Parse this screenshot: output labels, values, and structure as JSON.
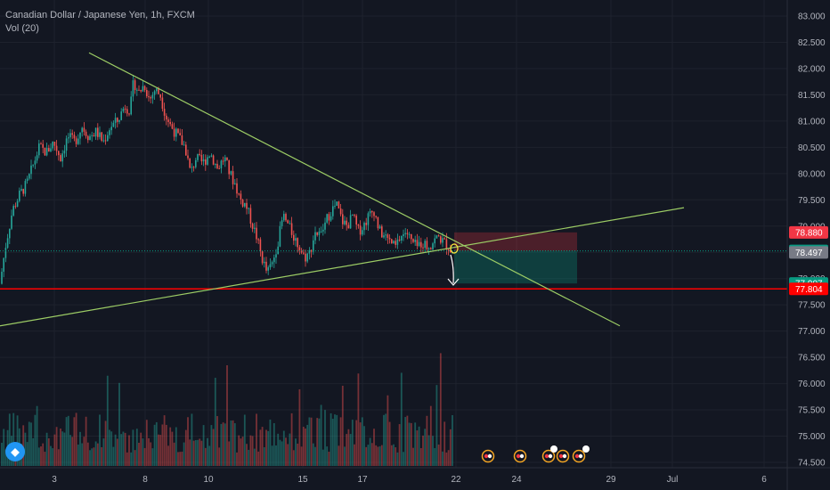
{
  "header": {
    "symbol_line": "Canadian Dollar / Japanese Yen, 1h, FXCM",
    "volume_line": "Vol (20)"
  },
  "chart_data": {
    "type": "candlestick",
    "title": "Canadian Dollar / Japanese Yen, 1h, FXCM",
    "ylim": [
      74.4,
      83.1
    ],
    "y_ticks": [
      "83.000",
      "82.500",
      "82.000",
      "81.500",
      "81.000",
      "80.500",
      "80.000",
      "79.500",
      "79.000",
      "78.500",
      "78.000",
      "77.500",
      "77.000",
      "76.500",
      "76.000",
      "75.500",
      "75.000",
      "74.500"
    ],
    "x_ticks": [
      "3",
      "8",
      "10",
      "15",
      "17",
      "22",
      "24",
      "29",
      "Jul",
      "6"
    ],
    "price_labels": [
      {
        "value": "78.880",
        "color": "#f23645"
      },
      {
        "value": "78.527",
        "color": "#089981"
      },
      {
        "value": "78.497",
        "color": "#787b86"
      },
      {
        "value": "77.907",
        "color": "#089981"
      },
      {
        "value": "77.804",
        "color": "#ff0000"
      }
    ],
    "close_path": [
      [
        0,
        77.9
      ],
      [
        6,
        78.6
      ],
      [
        14,
        79.3
      ],
      [
        22,
        79.6
      ],
      [
        30,
        79.8
      ],
      [
        38,
        80.2
      ],
      [
        44,
        80.5
      ],
      [
        52,
        80.4
      ],
      [
        60,
        80.6
      ],
      [
        68,
        80.3
      ],
      [
        76,
        80.7
      ],
      [
        84,
        80.6
      ],
      [
        92,
        80.9
      ],
      [
        100,
        80.7
      ],
      [
        108,
        80.8
      ],
      [
        116,
        80.6
      ],
      [
        124,
        80.9
      ],
      [
        132,
        81.0
      ],
      [
        140,
        81.3
      ],
      [
        146,
        81.2
      ],
      [
        150,
        81.75
      ],
      [
        156,
        81.55
      ],
      [
        162,
        81.7
      ],
      [
        168,
        81.4
      ],
      [
        174,
        81.6
      ],
      [
        180,
        81.5
      ],
      [
        186,
        81.1
      ],
      [
        192,
        80.9
      ],
      [
        200,
        80.7
      ],
      [
        208,
        80.5
      ],
      [
        214,
        80.0
      ],
      [
        220,
        80.3
      ],
      [
        228,
        80.2
      ],
      [
        236,
        80.4
      ],
      [
        244,
        80.1
      ],
      [
        252,
        80.3
      ],
      [
        258,
        80.0
      ],
      [
        264,
        79.8
      ],
      [
        270,
        79.5
      ],
      [
        276,
        79.4
      ],
      [
        282,
        79.1
      ],
      [
        288,
        78.8
      ],
      [
        294,
        78.4
      ],
      [
        300,
        78.1
      ],
      [
        306,
        78.3
      ],
      [
        312,
        78.7
      ],
      [
        318,
        79.2
      ],
      [
        324,
        79.0
      ],
      [
        330,
        78.8
      ],
      [
        336,
        78.6
      ],
      [
        342,
        78.4
      ],
      [
        348,
        78.5
      ],
      [
        354,
        78.9
      ],
      [
        360,
        78.8
      ],
      [
        366,
        79.1
      ],
      [
        372,
        79.3
      ],
      [
        378,
        79.4
      ],
      [
        384,
        79.1
      ],
      [
        390,
        79.0
      ],
      [
        396,
        79.2
      ],
      [
        402,
        78.9
      ],
      [
        408,
        79.0
      ],
      [
        414,
        79.2
      ],
      [
        420,
        79.3
      ],
      [
        426,
        78.9
      ],
      [
        432,
        78.8
      ],
      [
        438,
        78.7
      ],
      [
        444,
        78.6
      ],
      [
        450,
        78.8
      ],
      [
        456,
        78.9
      ],
      [
        462,
        78.7
      ],
      [
        468,
        78.6
      ],
      [
        474,
        78.7
      ],
      [
        480,
        78.6
      ],
      [
        486,
        78.7
      ],
      [
        492,
        78.8
      ],
      [
        498,
        78.7
      ],
      [
        504,
        78.6
      ],
      [
        508,
        78.5
      ]
    ],
    "volume_max_label": "",
    "annotations": {
      "downtrend_line": [
        [
          100,
          82.3
        ],
        [
          696,
          77.1
        ]
      ],
      "uptrend_line": [
        [
          0,
          77.1
        ],
        [
          768,
          79.35
        ]
      ],
      "support_line": 77.804,
      "stop_zone": [
        78.527,
        78.88
      ],
      "target_zone": [
        77.907,
        78.527
      ],
      "position_x": [
        510,
        648
      ]
    }
  }
}
